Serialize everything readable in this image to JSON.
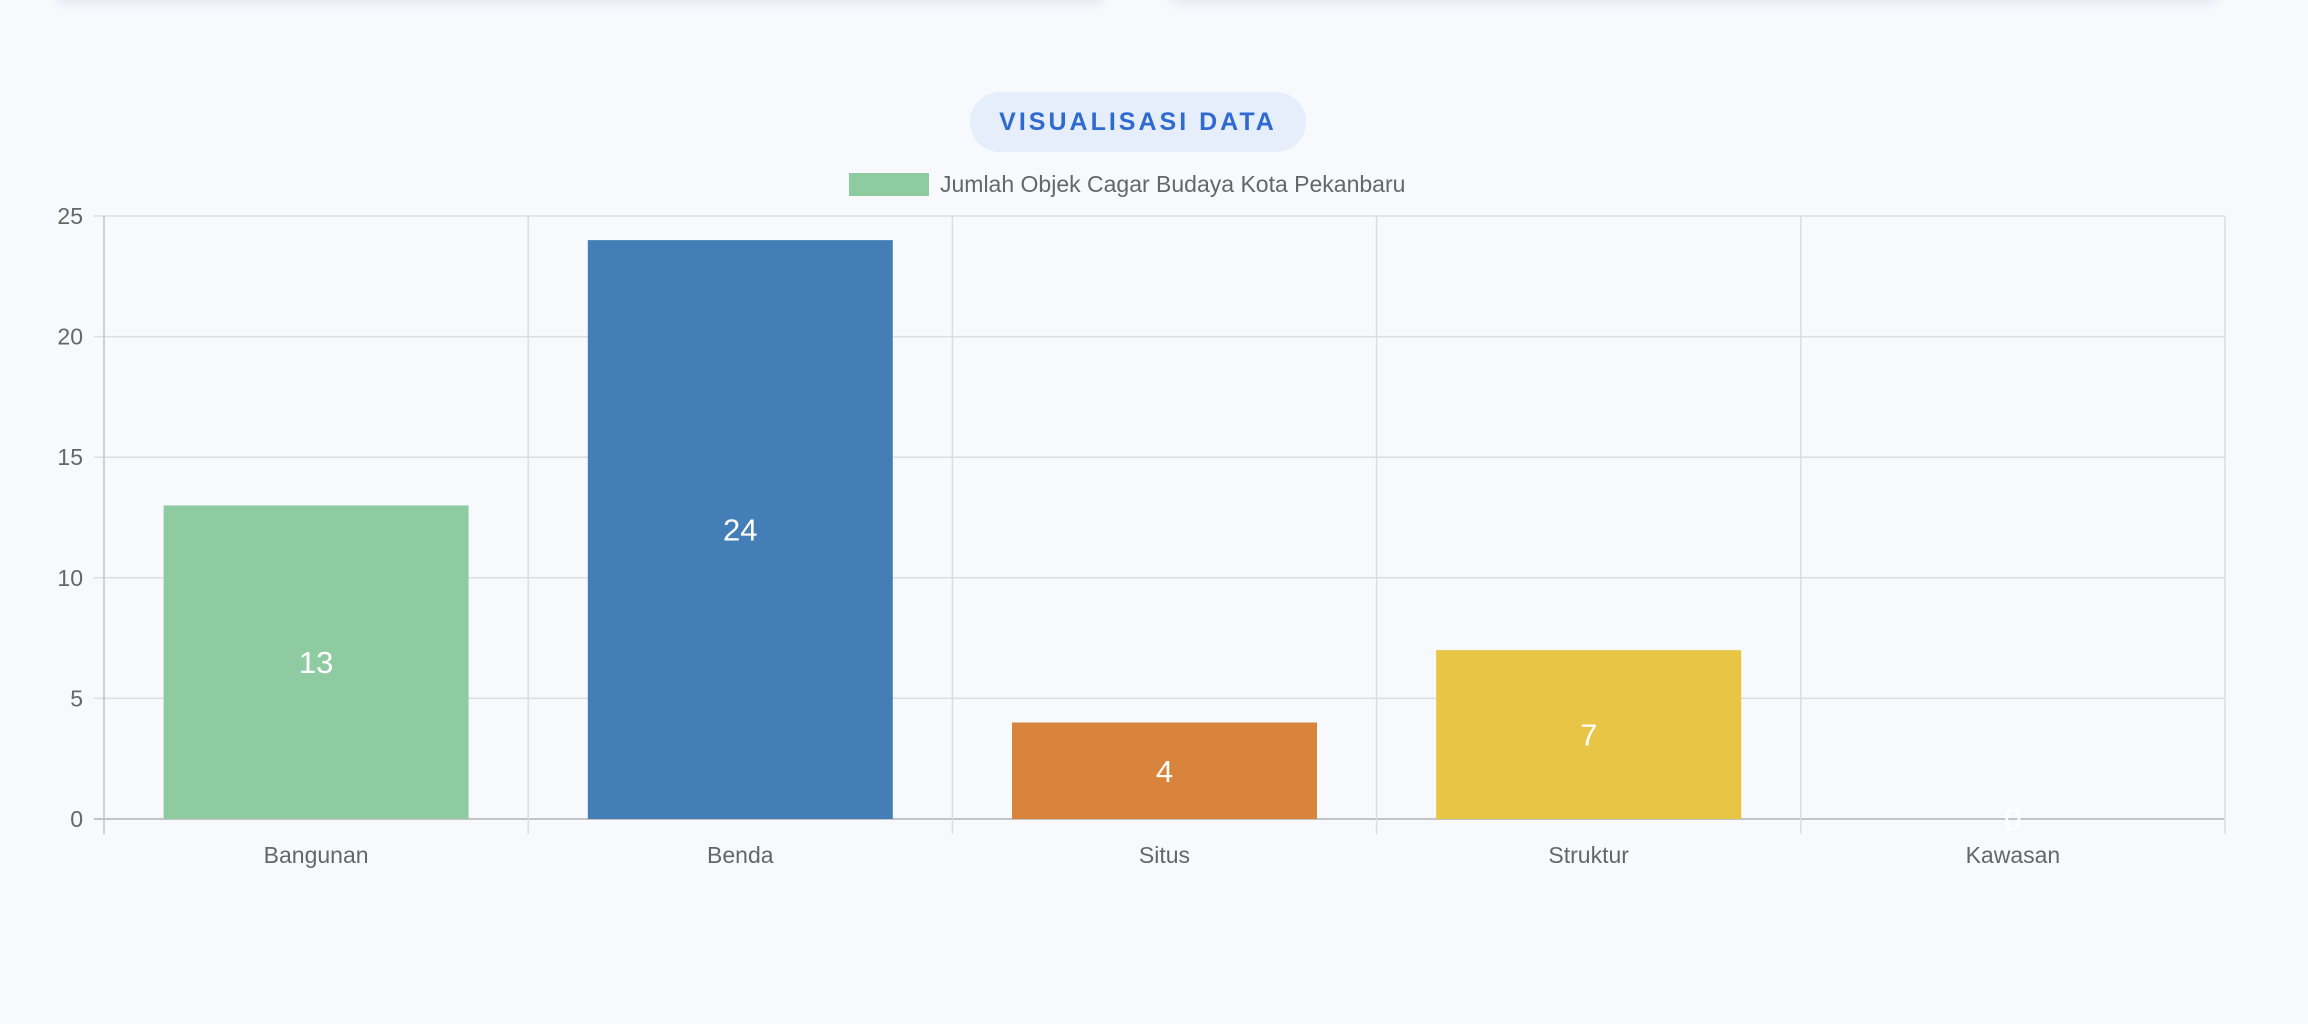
{
  "section_title": "VISUALISASI DATA",
  "chart_data": {
    "type": "bar",
    "categories": [
      "Bangunan",
      "Benda",
      "Situs",
      "Struktur",
      "Kawasan"
    ],
    "series": [
      {
        "name": "Jumlah Objek Cagar Budaya Kota Pekanbaru",
        "values": [
          13,
          24,
          4,
          7,
          0
        ]
      }
    ],
    "bar_colors": [
      "#8fcba1",
      "#437fb6",
      "#d8843c",
      "#e8c544",
      "#f5a0b8"
    ],
    "legend_color": "#8fcba1",
    "data_label_color": "#ffffff",
    "ylim": [
      0,
      25
    ],
    "yticks": [
      0,
      5,
      10,
      15,
      20,
      25
    ],
    "grid": true,
    "legend_position": "top-center",
    "title": "",
    "xlabel": "",
    "ylabel": ""
  }
}
